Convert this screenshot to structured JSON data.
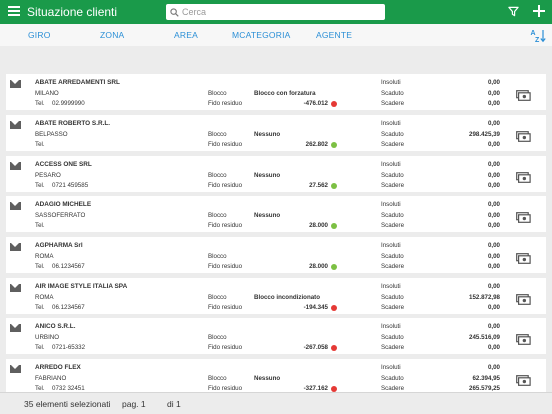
{
  "header": {
    "title": "Situazione clienti",
    "search_placeholder": "Cerca",
    "accent": "#1a9a4a"
  },
  "tabs": [
    "GIRO",
    "ZONA",
    "AREA",
    "MCATEGORIA",
    "AGENTE"
  ],
  "labels": {
    "tel": "Tel.",
    "blocco": "Blocco",
    "fido": "Fido residuo",
    "insoluti": "Insoluti",
    "scaduto": "Scaduto",
    "scadere": "Scadere"
  },
  "clients": [
    {
      "name": "ABATE ARREDAMENTI SRL",
      "city": "MILANO",
      "tel": "02.9999990",
      "blocco": "Blocco con forzatura",
      "fido": "-476.012",
      "status": "red",
      "insoluti": "0,00",
      "scaduto": "0,00",
      "scadere": "0,00"
    },
    {
      "name": "ABATE ROBERTO S.R.L.",
      "city": "BELPASSO",
      "tel": "",
      "blocco": "Nessuno",
      "fido": "262.802",
      "status": "green",
      "insoluti": "0,00",
      "scaduto": "298.425,39",
      "scadere": "0,00"
    },
    {
      "name": "ACCESS ONE SRL",
      "city": "PESARO",
      "tel": "0721 459585",
      "blocco": "Nessuno",
      "fido": "27.562",
      "status": "green",
      "insoluti": "0,00",
      "scaduto": "0,00",
      "scadere": "0,00"
    },
    {
      "name": "ADAGIO MICHELE",
      "city": "SASSOFERRATO",
      "tel": "",
      "blocco": "Nessuno",
      "fido": "28.000",
      "status": "green",
      "insoluti": "0,00",
      "scaduto": "0,00",
      "scadere": "0,00"
    },
    {
      "name": "AGPHARMA Srl",
      "city": "ROMA",
      "tel": "06.1234567",
      "blocco": "",
      "fido": "28.000",
      "status": "green",
      "insoluti": "0,00",
      "scaduto": "0,00",
      "scadere": "0,00"
    },
    {
      "name": "AIR IMAGE STYLE ITALIA SPA",
      "city": "ROMA",
      "tel": "06.1234567",
      "blocco": "Blocco incondizionato",
      "fido": "-194.345",
      "status": "red",
      "insoluti": "0,00",
      "scaduto": "152.872,98",
      "scadere": "0,00"
    },
    {
      "name": "ANICO S.R.L.",
      "city": "URBINO",
      "tel": "0721-65332",
      "blocco": "",
      "fido": "-267.058",
      "status": "red",
      "insoluti": "0,00",
      "scaduto": "245.516,09",
      "scadere": "0,00"
    },
    {
      "name": "ARREDO FLEX",
      "city": "FABRIANO",
      "tel": "0732 32451",
      "blocco": "Nessuno",
      "fido": "-327.162",
      "status": "red",
      "insoluti": "0,00",
      "scaduto": "62.394,95",
      "scadere": "265.579,25"
    }
  ],
  "footer": {
    "selected": "35 elementi selezionati",
    "page": "pag. 1",
    "of": "di 1"
  }
}
